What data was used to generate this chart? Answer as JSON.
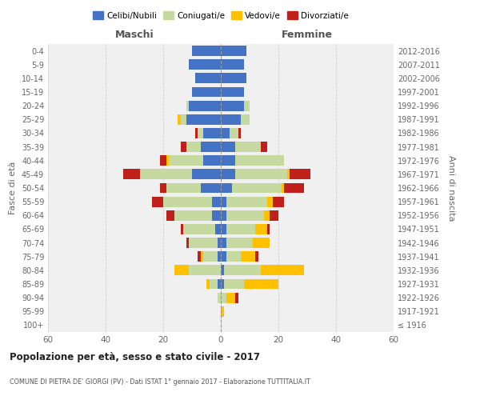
{
  "age_groups": [
    "100+",
    "95-99",
    "90-94",
    "85-89",
    "80-84",
    "75-79",
    "70-74",
    "65-69",
    "60-64",
    "55-59",
    "50-54",
    "45-49",
    "40-44",
    "35-39",
    "30-34",
    "25-29",
    "20-24",
    "15-19",
    "10-14",
    "5-9",
    "0-4"
  ],
  "birth_years": [
    "≤ 1916",
    "1917-1921",
    "1922-1926",
    "1927-1931",
    "1932-1936",
    "1937-1941",
    "1942-1946",
    "1947-1951",
    "1952-1956",
    "1957-1961",
    "1962-1966",
    "1967-1971",
    "1972-1976",
    "1977-1981",
    "1982-1986",
    "1987-1991",
    "1992-1996",
    "1997-2001",
    "2002-2006",
    "2007-2011",
    "2012-2016"
  ],
  "maschi": {
    "celibi": [
      0,
      0,
      0,
      1,
      0,
      1,
      1,
      2,
      3,
      3,
      7,
      10,
      6,
      7,
      6,
      12,
      11,
      10,
      9,
      11,
      10
    ],
    "coniugati": [
      0,
      0,
      1,
      3,
      11,
      5,
      10,
      11,
      13,
      17,
      12,
      18,
      12,
      5,
      2,
      2,
      1,
      0,
      0,
      0,
      0
    ],
    "vedovi": [
      0,
      0,
      0,
      1,
      5,
      1,
      0,
      0,
      0,
      0,
      0,
      0,
      1,
      0,
      0,
      1,
      0,
      0,
      0,
      0,
      0
    ],
    "divorziati": [
      0,
      0,
      0,
      0,
      0,
      1,
      1,
      1,
      3,
      4,
      2,
      6,
      2,
      2,
      1,
      0,
      0,
      0,
      0,
      0,
      0
    ]
  },
  "femmine": {
    "nubili": [
      0,
      0,
      0,
      1,
      1,
      2,
      2,
      2,
      2,
      2,
      4,
      5,
      5,
      5,
      3,
      7,
      8,
      8,
      9,
      8,
      9
    ],
    "coniugate": [
      0,
      0,
      2,
      7,
      13,
      5,
      9,
      10,
      13,
      14,
      17,
      18,
      17,
      9,
      3,
      3,
      2,
      0,
      0,
      0,
      0
    ],
    "vedove": [
      0,
      1,
      3,
      12,
      15,
      5,
      6,
      4,
      2,
      2,
      1,
      1,
      0,
      0,
      0,
      0,
      0,
      0,
      0,
      0,
      0
    ],
    "divorziate": [
      0,
      0,
      1,
      0,
      0,
      1,
      0,
      1,
      3,
      4,
      7,
      7,
      0,
      2,
      1,
      0,
      0,
      0,
      0,
      0,
      0
    ]
  },
  "colors": {
    "celibi": "#4472c4",
    "coniugati": "#c5d9a0",
    "vedovi": "#ffc000",
    "divorziati": "#c0201a"
  },
  "xlim": 60,
  "title": "Popolazione per età, sesso e stato civile - 2017",
  "subtitle": "COMUNE DI PIETRA DE' GIORGI (PV) - Dati ISTAT 1° gennaio 2017 - Elaborazione TUTTITALIA.IT",
  "ylabel_left": "Fasce di età",
  "ylabel_right": "Anni di nascita",
  "xlabel_left": "Maschi",
  "xlabel_right": "Femmine",
  "legend_labels": [
    "Celibi/Nubili",
    "Coniugati/e",
    "Vedovi/e",
    "Divorziati/e"
  ],
  "background_color": "#ffffff",
  "plot_bg": "#f0f0f0",
  "grid_color": "#cccccc"
}
